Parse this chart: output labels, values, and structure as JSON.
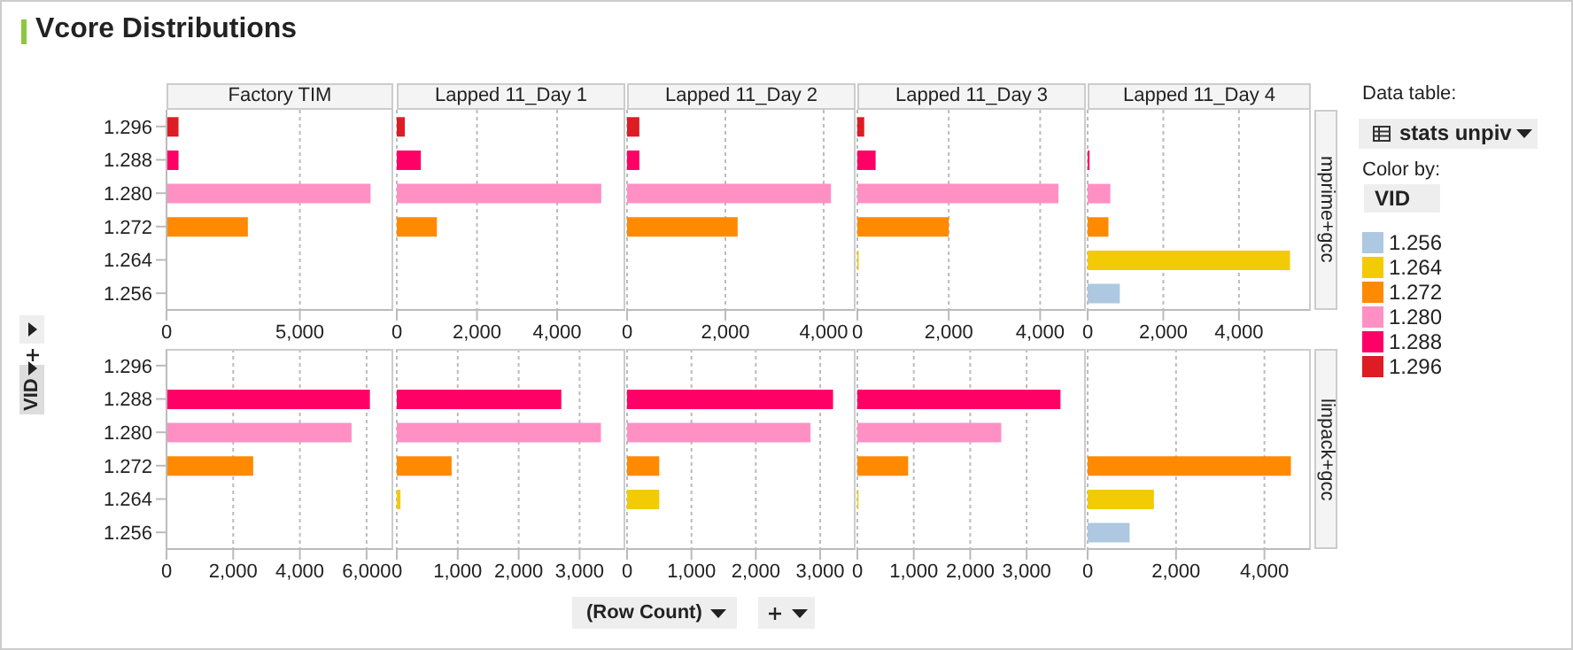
{
  "chart_data": [
    {
      "type": "bar",
      "orientation": "horizontal",
      "stacked": true,
      "title": "Factory TIM",
      "ylabel": "VID",
      "legend": "right",
      "legend_title": "VID",
      "annotations": [
        "Vcore Distributions",
        "Data table:",
        "stats unpiv",
        "Color by:"
      ],
      "categories": [
        "1.296",
        "1.288",
        "1.280",
        "1.272",
        "1.264",
        "1.256"
      ],
      "xlim": [
        0,
        8500
      ],
      "xticks": [
        {
          "value": 0,
          "label": "0"
        },
        {
          "value": 5000,
          "label": "5,000"
        }
      ],
      "grid": "x",
      "series": [
        {
          "name": "1.256",
          "color": "#adc8e0",
          "values": [
            null,
            null,
            null,
            null,
            null,
            null
          ]
        },
        {
          "name": "1.264",
          "color": "#f2cb05",
          "values": [
            null,
            null,
            null,
            null,
            null,
            null
          ]
        },
        {
          "name": "1.272",
          "color": "#ff8a00",
          "values": [
            null,
            null,
            null,
            3050,
            null,
            null
          ]
        },
        {
          "name": "1.280",
          "color": "#ff90c4",
          "values": [
            null,
            null,
            7650,
            null,
            null,
            null
          ]
        },
        {
          "name": "1.288",
          "color": "#ff0066",
          "values": [
            null,
            450,
            null,
            null,
            null,
            null
          ]
        },
        {
          "name": "1.296",
          "color": "#dd1c24",
          "values": [
            450,
            null,
            null,
            null,
            null,
            null
          ]
        }
      ]
    },
    {
      "type": "bar",
      "orientation": "horizontal",
      "stacked": true,
      "title": "Lapped 11_Day 1",
      "categories": [
        "1.296",
        "1.288",
        "1.280",
        "1.272",
        "1.264",
        "1.256"
      ],
      "xlim": [
        0,
        5700
      ],
      "xticks": [
        {
          "value": 0,
          "label": "0"
        },
        {
          "value": 2000,
          "label": "2,000"
        },
        {
          "value": 4000,
          "label": "4,000"
        }
      ],
      "grid": "x",
      "tick_labels": "x",
      "series": [
        {
          "color": "#ff8a00",
          "values": [
            null,
            null,
            null,
            1000,
            null,
            null
          ]
        },
        {
          "color": "#ff90c4",
          "values": [
            null,
            null,
            5100,
            null,
            null,
            null
          ]
        },
        {
          "color": "#ff0066",
          "values": [
            null,
            600,
            null,
            null,
            null,
            null
          ]
        },
        {
          "color": "#dd1c24",
          "values": [
            200,
            null,
            null,
            null,
            null,
            null
          ]
        }
      ]
    },
    {
      "type": "bar",
      "orientation": "horizontal",
      "stacked": true,
      "title": "Lapped 11_Day 2",
      "categories": [
        "1.296",
        "1.288",
        "1.280",
        "1.272",
        "1.264",
        "1.256"
      ],
      "xlim": [
        0,
        4650
      ],
      "xticks": [
        {
          "value": 0,
          "label": "0"
        },
        {
          "value": 2000,
          "label": "2,000"
        },
        {
          "value": 4000,
          "label": "4,000"
        }
      ],
      "grid": "x",
      "tick_labels": "x",
      "series": [
        {
          "color": "#ff8a00",
          "values": [
            null,
            null,
            null,
            2250,
            null,
            null
          ]
        },
        {
          "color": "#ff90c4",
          "values": [
            null,
            null,
            4150,
            null,
            null,
            null
          ]
        },
        {
          "color": "#ff0066",
          "values": [
            null,
            250,
            null,
            null,
            null,
            null
          ]
        },
        {
          "color": "#dd1c24",
          "values": [
            250,
            null,
            null,
            null,
            null,
            null
          ]
        }
      ]
    },
    {
      "type": "bar",
      "orientation": "horizontal",
      "stacked": true,
      "title": "Lapped 11_Day 3",
      "categories": [
        "1.296",
        "1.288",
        "1.280",
        "1.272",
        "1.264",
        "1.256"
      ],
      "xlim": [
        0,
        5000
      ],
      "xticks": [
        {
          "value": 0,
          "label": "0"
        },
        {
          "value": 2000,
          "label": "2,000"
        },
        {
          "value": 4000,
          "label": "4,000"
        }
      ],
      "grid": "x",
      "tick_labels": "x",
      "series": [
        {
          "color": "#f2cb05",
          "values": [
            null,
            null,
            null,
            null,
            30,
            null
          ]
        },
        {
          "color": "#ff8a00",
          "values": [
            null,
            null,
            null,
            2000,
            null,
            null
          ]
        },
        {
          "color": "#ff90c4",
          "values": [
            null,
            null,
            4400,
            null,
            null,
            null
          ]
        },
        {
          "color": "#ff0066",
          "values": [
            null,
            400,
            null,
            null,
            null,
            null
          ]
        },
        {
          "color": "#dd1c24",
          "values": [
            150,
            null,
            null,
            null,
            null,
            null
          ]
        }
      ]
    },
    {
      "type": "bar",
      "orientation": "horizontal",
      "stacked": true,
      "title": "Lapped 11_Day 4",
      "y2label": "mprime+gcc",
      "categories": [
        "1.296",
        "1.288",
        "1.280",
        "1.272",
        "1.264",
        "1.256"
      ],
      "xlim": [
        0,
        5900
      ],
      "xticks": [
        {
          "value": 0,
          "label": "0"
        },
        {
          "value": 2000,
          "label": "2,000"
        },
        {
          "value": 4000,
          "label": "4,000"
        }
      ],
      "grid": "x",
      "tick_labels": "x",
      "series": [
        {
          "color": "#adc8e0",
          "values": [
            null,
            null,
            null,
            null,
            null,
            850
          ]
        },
        {
          "color": "#f2cb05",
          "values": [
            null,
            null,
            null,
            null,
            5350,
            null
          ]
        },
        {
          "color": "#ff8a00",
          "values": [
            null,
            null,
            null,
            550,
            null,
            null
          ]
        },
        {
          "color": "#ff90c4",
          "values": [
            null,
            null,
            600,
            null,
            null,
            null
          ]
        },
        {
          "color": "#ff0066",
          "values": [
            null,
            50,
            null,
            null,
            null,
            null
          ]
        }
      ]
    },
    {
      "type": "bar",
      "orientation": "horizontal",
      "stacked": true,
      "categories": [
        "1.296",
        "1.288",
        "1.280",
        "1.272",
        "1.264",
        "1.256"
      ],
      "xlim": [
        0,
        6800
      ],
      "xticks": [
        {
          "value": 0,
          "label": "0"
        },
        {
          "value": 2000,
          "label": "2,000"
        },
        {
          "value": 4000,
          "label": "4,000"
        },
        {
          "value": 6000,
          "label": "6,000"
        }
      ],
      "grid": "x",
      "series": [
        {
          "color": "#ff8a00",
          "values": [
            null,
            null,
            null,
            2600,
            null,
            null
          ]
        },
        {
          "color": "#ff90c4",
          "values": [
            null,
            null,
            5550,
            null,
            null,
            null
          ]
        },
        {
          "color": "#ff0066",
          "values": [
            null,
            6100,
            null,
            null,
            null,
            null
          ]
        }
      ]
    },
    {
      "type": "bar",
      "orientation": "horizontal",
      "stacked": true,
      "categories": [
        "1.296",
        "1.288",
        "1.280",
        "1.272",
        "1.264",
        "1.256"
      ],
      "xlim": [
        0,
        3750
      ],
      "xticks": [
        {
          "value": 0,
          "label": "0"
        },
        {
          "value": 1000,
          "label": "1,000"
        },
        {
          "value": 2000,
          "label": "2,000"
        },
        {
          "value": 3000,
          "label": "3,000"
        }
      ],
      "grid": "x",
      "tick_labels": "x",
      "series": [
        {
          "color": "#f2cb05",
          "values": [
            null,
            null,
            null,
            null,
            60,
            null
          ]
        },
        {
          "color": "#ff8a00",
          "values": [
            null,
            null,
            null,
            900,
            null,
            null
          ]
        },
        {
          "color": "#ff90c4",
          "values": [
            null,
            null,
            3350,
            null,
            null,
            null
          ]
        },
        {
          "color": "#ff0066",
          "values": [
            null,
            2700,
            null,
            null,
            null,
            null
          ]
        }
      ]
    },
    {
      "type": "bar",
      "orientation": "horizontal",
      "stacked": true,
      "xlabel": "(Row Count)",
      "categories": [
        "1.296",
        "1.288",
        "1.280",
        "1.272",
        "1.264",
        "1.256"
      ],
      "xlim": [
        0,
        3550
      ],
      "xticks": [
        {
          "value": 0,
          "label": "0"
        },
        {
          "value": 1000,
          "label": "1,000"
        },
        {
          "value": 2000,
          "label": "2,000"
        },
        {
          "value": 3000,
          "label": "3,000"
        }
      ],
      "grid": "x",
      "tick_labels": "x",
      "series": [
        {
          "color": "#f2cb05",
          "values": [
            null,
            null,
            null,
            null,
            500,
            null
          ]
        },
        {
          "color": "#ff8a00",
          "values": [
            null,
            null,
            null,
            500,
            null,
            null
          ]
        },
        {
          "color": "#ff90c4",
          "values": [
            null,
            null,
            2850,
            null,
            null,
            null
          ]
        },
        {
          "color": "#ff0066",
          "values": [
            null,
            3200,
            null,
            null,
            null,
            null
          ]
        }
      ]
    },
    {
      "type": "bar",
      "orientation": "horizontal",
      "stacked": true,
      "categories": [
        "1.296",
        "1.288",
        "1.280",
        "1.272",
        "1.264",
        "1.256"
      ],
      "xlim": [
        0,
        4050
      ],
      "xticks": [
        {
          "value": 0,
          "label": "0"
        },
        {
          "value": 1000,
          "label": "1,000"
        },
        {
          "value": 2000,
          "label": "2,000"
        },
        {
          "value": 3000,
          "label": "3,000"
        }
      ],
      "grid": "x",
      "tick_labels": "x",
      "series": [
        {
          "color": "#f2cb05",
          "values": [
            null,
            null,
            null,
            null,
            20,
            null
          ]
        },
        {
          "color": "#ff8a00",
          "values": [
            null,
            null,
            null,
            900,
            null,
            null
          ]
        },
        {
          "color": "#ff90c4",
          "values": [
            null,
            null,
            2550,
            null,
            null,
            null
          ]
        },
        {
          "color": "#ff0066",
          "values": [
            null,
            3600,
            null,
            null,
            null,
            null
          ]
        }
      ]
    },
    {
      "type": "bar",
      "orientation": "horizontal",
      "stacked": true,
      "y2label": "linpack+gcc",
      "categories": [
        "1.296",
        "1.288",
        "1.280",
        "1.272",
        "1.264",
        "1.256"
      ],
      "xlim": [
        0,
        5050
      ],
      "xticks": [
        {
          "value": 0,
          "label": "0"
        },
        {
          "value": 2000,
          "label": "2,000"
        },
        {
          "value": 4000,
          "label": "4,000"
        }
      ],
      "grid": "x",
      "tick_labels": "x",
      "series": [
        {
          "color": "#adc8e0",
          "values": [
            null,
            null,
            null,
            null,
            null,
            950
          ]
        },
        {
          "color": "#f2cb05",
          "values": [
            null,
            null,
            null,
            null,
            1500,
            null
          ]
        },
        {
          "color": "#ff8a00",
          "values": [
            null,
            null,
            null,
            4600,
            null,
            null
          ]
        }
      ]
    }
  ]
}
